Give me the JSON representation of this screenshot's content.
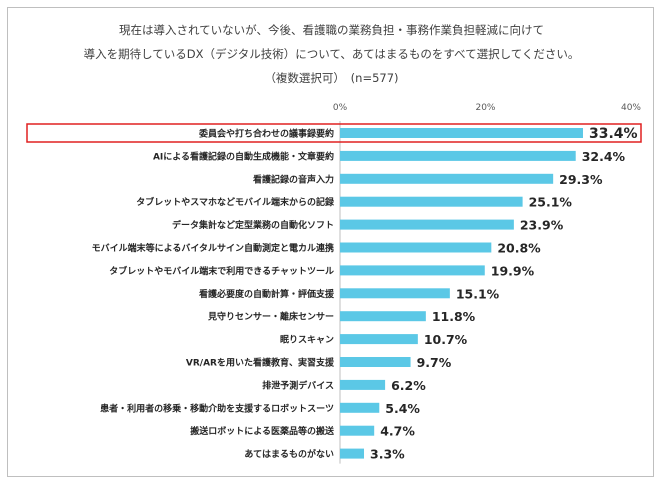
{
  "chart_data": {
    "type": "bar",
    "orientation": "horizontal",
    "title_lines": [
      "現在は導入されていないが、今後、看護職の業務負担・事務作業負担軽減に向けて",
      "導入を期待しているDX（デジタル技術）について、あてはまるものをすべて選択してください。",
      "（複数選択可）　(n=577)"
    ],
    "categories": [
      "委員会や打ち合わせの議事録要約",
      "AIによる看護記録の自動生成機能・文章要約",
      "看護記録の音声入力",
      "タブレットやスマホなどモバイル端末からの記録",
      "データ集計など定型業務の自動化ソフト",
      "モバイル端末等によるバイタルサイン自動測定と電カル連携",
      "タブレットやモバイル端末で利用できるチャットツール",
      "看護必要度の自動計算・評価支援",
      "見守りセンサー・離床センサー",
      "眠りスキャン",
      "VR/ARを用いた看護教育、実習支援",
      "排泄予測デバイス",
      "患者・利用者の移乗・移動介助を支援するロボットスーツ",
      "搬送ロボットによる医薬品等の搬送",
      "あてはまるものがない"
    ],
    "values": [
      33.4,
      32.4,
      29.3,
      25.1,
      23.9,
      20.8,
      19.9,
      15.1,
      11.8,
      10.7,
      9.7,
      6.2,
      5.4,
      4.7,
      3.3
    ],
    "value_labels": [
      "33.4%",
      "32.4%",
      "29.3%",
      "25.1%",
      "23.9%",
      "20.8%",
      "19.9%",
      "15.1%",
      "11.8%",
      "10.7%",
      "9.7%",
      "6.2%",
      "5.4%",
      "4.7%",
      "3.3%"
    ],
    "xlim": [
      0,
      40
    ],
    "ticks": [
      {
        "value": 0,
        "label": "0%"
      },
      {
        "value": 20,
        "label": "20%"
      },
      {
        "value": 40,
        "label": "40%"
      }
    ],
    "bar_color": "#5bc8e6",
    "highlight_color": "#e02020",
    "highlight_index": 0,
    "grid": false,
    "legend": "none"
  }
}
